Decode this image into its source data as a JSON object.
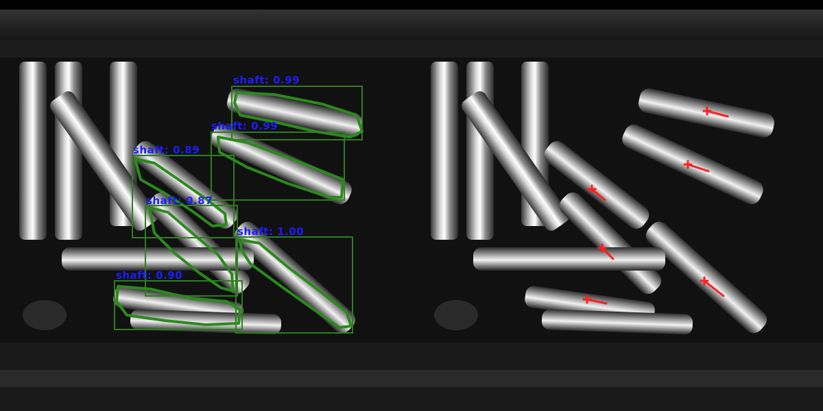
{
  "colors": {
    "detection_label": "#1c1cff",
    "detection_box": "#2f7d1e",
    "detection_mask": "#2b8a1c",
    "grasp_marker": "#ff1f1f"
  },
  "left_view": {
    "detections": [
      {
        "label": "shaft: 0.99"
      },
      {
        "label": "shaft: 0.99"
      },
      {
        "label": "shaft: 0.89"
      },
      {
        "label": "shaft: 0.87"
      },
      {
        "label": "shaft: 1.00"
      },
      {
        "label": "shaft: 0.90"
      }
    ]
  },
  "right_view": {
    "grasp_points": 6
  }
}
